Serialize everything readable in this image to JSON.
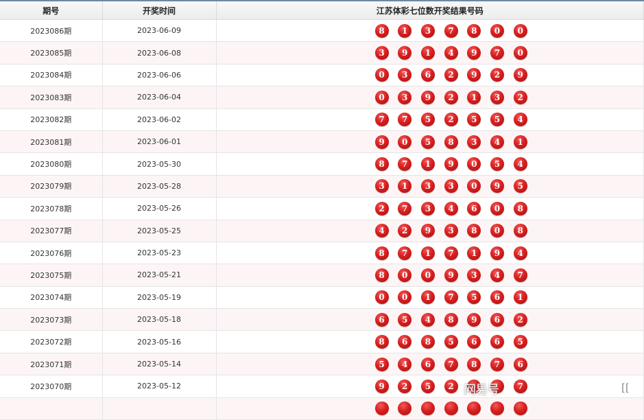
{
  "header": {
    "issue": "期号",
    "date": "开奖时间",
    "numbers": "江苏体彩七位数开奖结果号码"
  },
  "rows": [
    {
      "issue": "2023086期",
      "date": "2023-06-09",
      "nums": [
        "8",
        "1",
        "3",
        "7",
        "8",
        "0",
        "0"
      ]
    },
    {
      "issue": "2023085期",
      "date": "2023-06-08",
      "nums": [
        "3",
        "9",
        "1",
        "4",
        "9",
        "7",
        "0"
      ]
    },
    {
      "issue": "2023084期",
      "date": "2023-06-06",
      "nums": [
        "0",
        "3",
        "6",
        "2",
        "9",
        "2",
        "9"
      ]
    },
    {
      "issue": "2023083期",
      "date": "2023-06-04",
      "nums": [
        "0",
        "3",
        "9",
        "2",
        "1",
        "3",
        "2"
      ]
    },
    {
      "issue": "2023082期",
      "date": "2023-06-02",
      "nums": [
        "7",
        "7",
        "5",
        "2",
        "5",
        "5",
        "4"
      ]
    },
    {
      "issue": "2023081期",
      "date": "2023-06-01",
      "nums": [
        "9",
        "0",
        "5",
        "8",
        "3",
        "4",
        "1"
      ]
    },
    {
      "issue": "2023080期",
      "date": "2023-05-30",
      "nums": [
        "8",
        "7",
        "1",
        "9",
        "0",
        "5",
        "4"
      ]
    },
    {
      "issue": "2023079期",
      "date": "2023-05-28",
      "nums": [
        "3",
        "1",
        "3",
        "3",
        "0",
        "9",
        "5"
      ]
    },
    {
      "issue": "2023078期",
      "date": "2023-05-26",
      "nums": [
        "2",
        "7",
        "3",
        "4",
        "6",
        "0",
        "8"
      ]
    },
    {
      "issue": "2023077期",
      "date": "2023-05-25",
      "nums": [
        "4",
        "2",
        "9",
        "3",
        "8",
        "0",
        "8"
      ]
    },
    {
      "issue": "2023076期",
      "date": "2023-05-23",
      "nums": [
        "8",
        "7",
        "1",
        "7",
        "1",
        "9",
        "4"
      ]
    },
    {
      "issue": "2023075期",
      "date": "2023-05-21",
      "nums": [
        "8",
        "0",
        "0",
        "9",
        "3",
        "4",
        "7"
      ]
    },
    {
      "issue": "2023074期",
      "date": "2023-05-19",
      "nums": [
        "0",
        "0",
        "1",
        "7",
        "5",
        "6",
        "1"
      ]
    },
    {
      "issue": "2023073期",
      "date": "2023-05-18",
      "nums": [
        "6",
        "5",
        "4",
        "8",
        "9",
        "6",
        "2"
      ]
    },
    {
      "issue": "2023072期",
      "date": "2023-05-16",
      "nums": [
        "8",
        "6",
        "8",
        "5",
        "6",
        "6",
        "5"
      ]
    },
    {
      "issue": "2023071期",
      "date": "2023-05-14",
      "nums": [
        "5",
        "4",
        "6",
        "7",
        "8",
        "7",
        "6"
      ]
    },
    {
      "issue": "2023070期",
      "date": "2023-05-12",
      "nums": [
        "9",
        "2",
        "5",
        "2",
        "",
        "",
        "7"
      ]
    },
    {
      "issue": "",
      "date": "",
      "nums": [
        "",
        "",
        "",
        "",
        "",
        "",
        ""
      ]
    }
  ],
  "watermark": "网易号",
  "colors": {
    "ball": "#d91f1f",
    "alt_row": "#fdf5f5",
    "top_border": "#6d87a8"
  }
}
